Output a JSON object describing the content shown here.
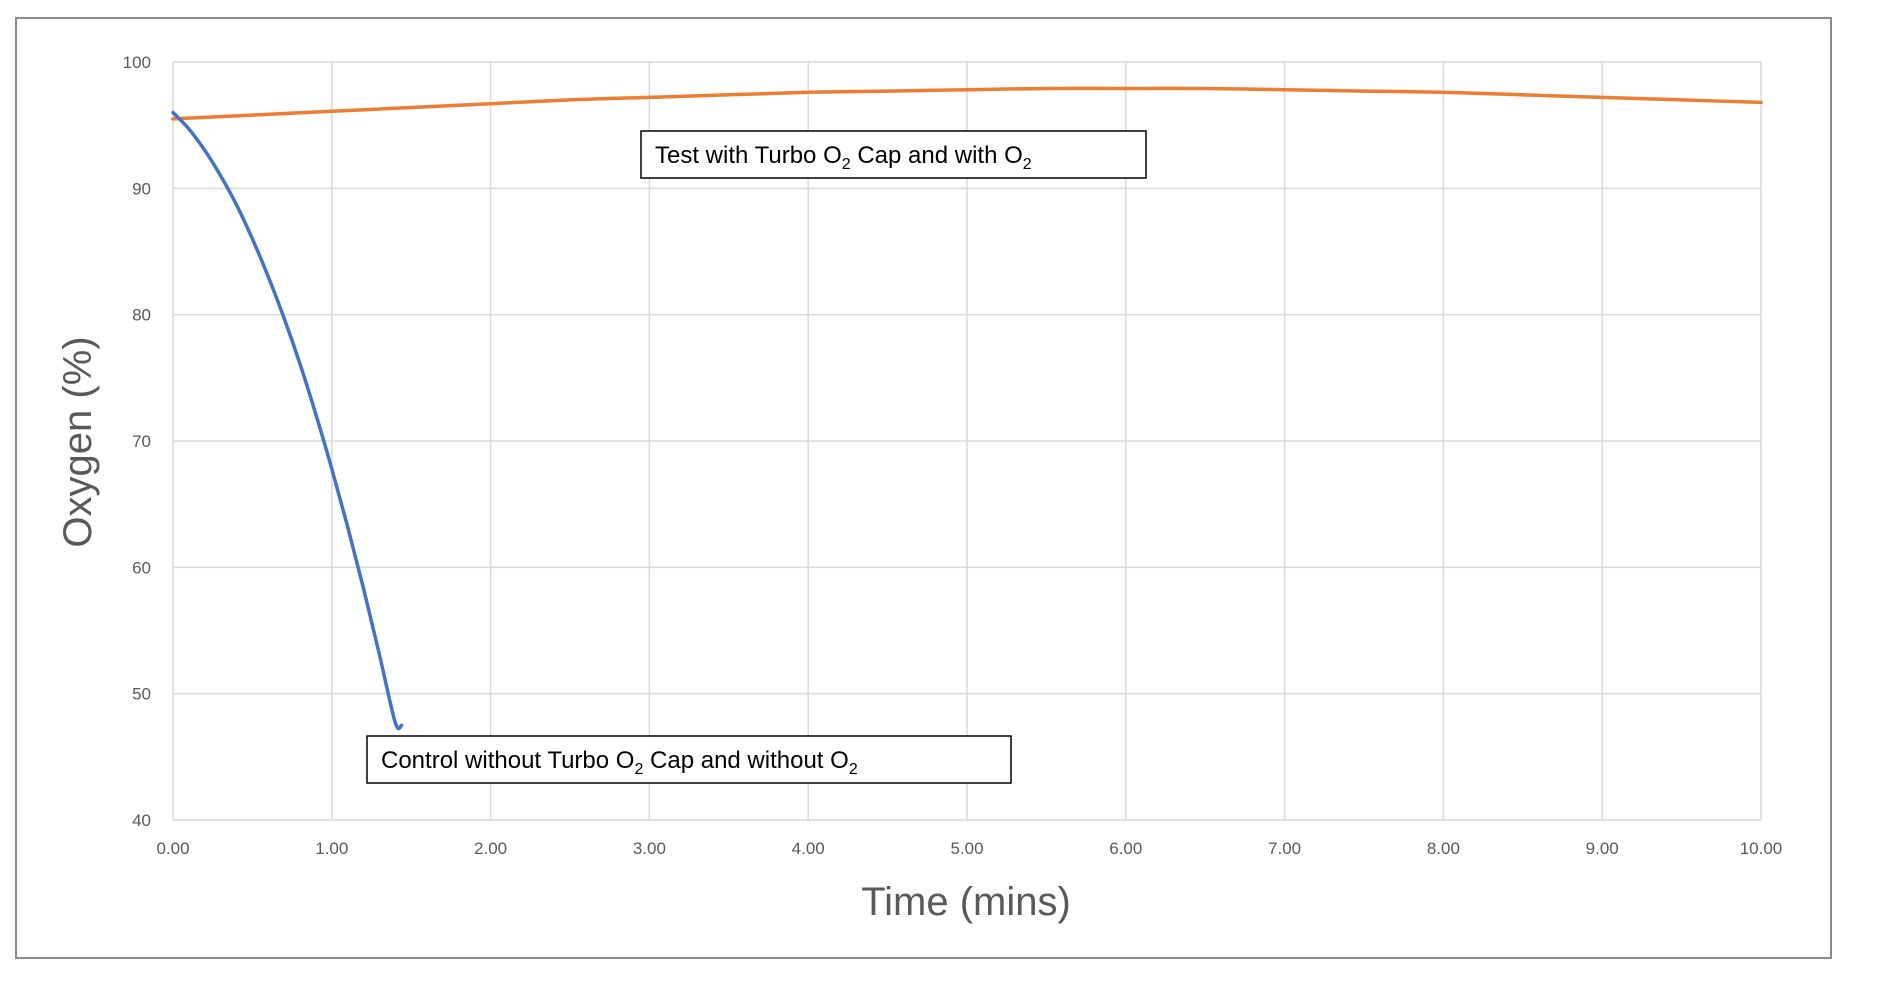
{
  "chart_data": {
    "type": "line",
    "title": "",
    "xlabel": "Time (mins)",
    "ylabel": "Oxygen (%)",
    "xlim": [
      0,
      10
    ],
    "ylim": [
      40,
      100
    ],
    "x_ticks": [
      "0.00",
      "1.00",
      "2.00",
      "3.00",
      "4.00",
      "5.00",
      "6.00",
      "7.00",
      "8.00",
      "9.00",
      "10.00"
    ],
    "y_ticks": [
      "40",
      "50",
      "60",
      "70",
      "80",
      "90",
      "100"
    ],
    "grid": true,
    "legend": "none",
    "series": [
      {
        "color": "#ED7D31",
        "x": [
          0,
          0.5,
          1,
          1.5,
          2,
          2.5,
          3,
          3.5,
          4,
          4.5,
          5,
          5.5,
          6,
          6.5,
          7,
          7.5,
          8,
          8.5,
          9,
          9.5,
          10
        ],
        "y": [
          95.5,
          95.8,
          96.1,
          96.4,
          96.7,
          97.0,
          97.2,
          97.4,
          97.6,
          97.7,
          97.8,
          97.9,
          97.9,
          97.9,
          97.8,
          97.7,
          97.6,
          97.4,
          97.2,
          97.0,
          96.8
        ]
      },
      {
        "color": "#4472C4",
        "x": [
          0,
          0.1,
          0.2,
          0.3,
          0.4,
          0.5,
          0.6,
          0.7,
          0.8,
          0.9,
          1.0,
          1.1,
          1.2,
          1.3,
          1.4,
          1.44
        ],
        "y": [
          96,
          94.7,
          93.0,
          91.0,
          88.7,
          86.0,
          83.0,
          79.7,
          76.1,
          72.1,
          67.8,
          63.2,
          58.3,
          53.1,
          47.7,
          47.5
        ]
      }
    ],
    "annotations": [
      {
        "pre": "Test with Turbo O",
        "sub": "2",
        "mid": " Cap and with O",
        "sub2": "2",
        "post": ""
      },
      {
        "pre": "Control without Turbo O",
        "sub": "2",
        "mid": " Cap and without O",
        "sub2": "2",
        "post": ""
      }
    ]
  }
}
